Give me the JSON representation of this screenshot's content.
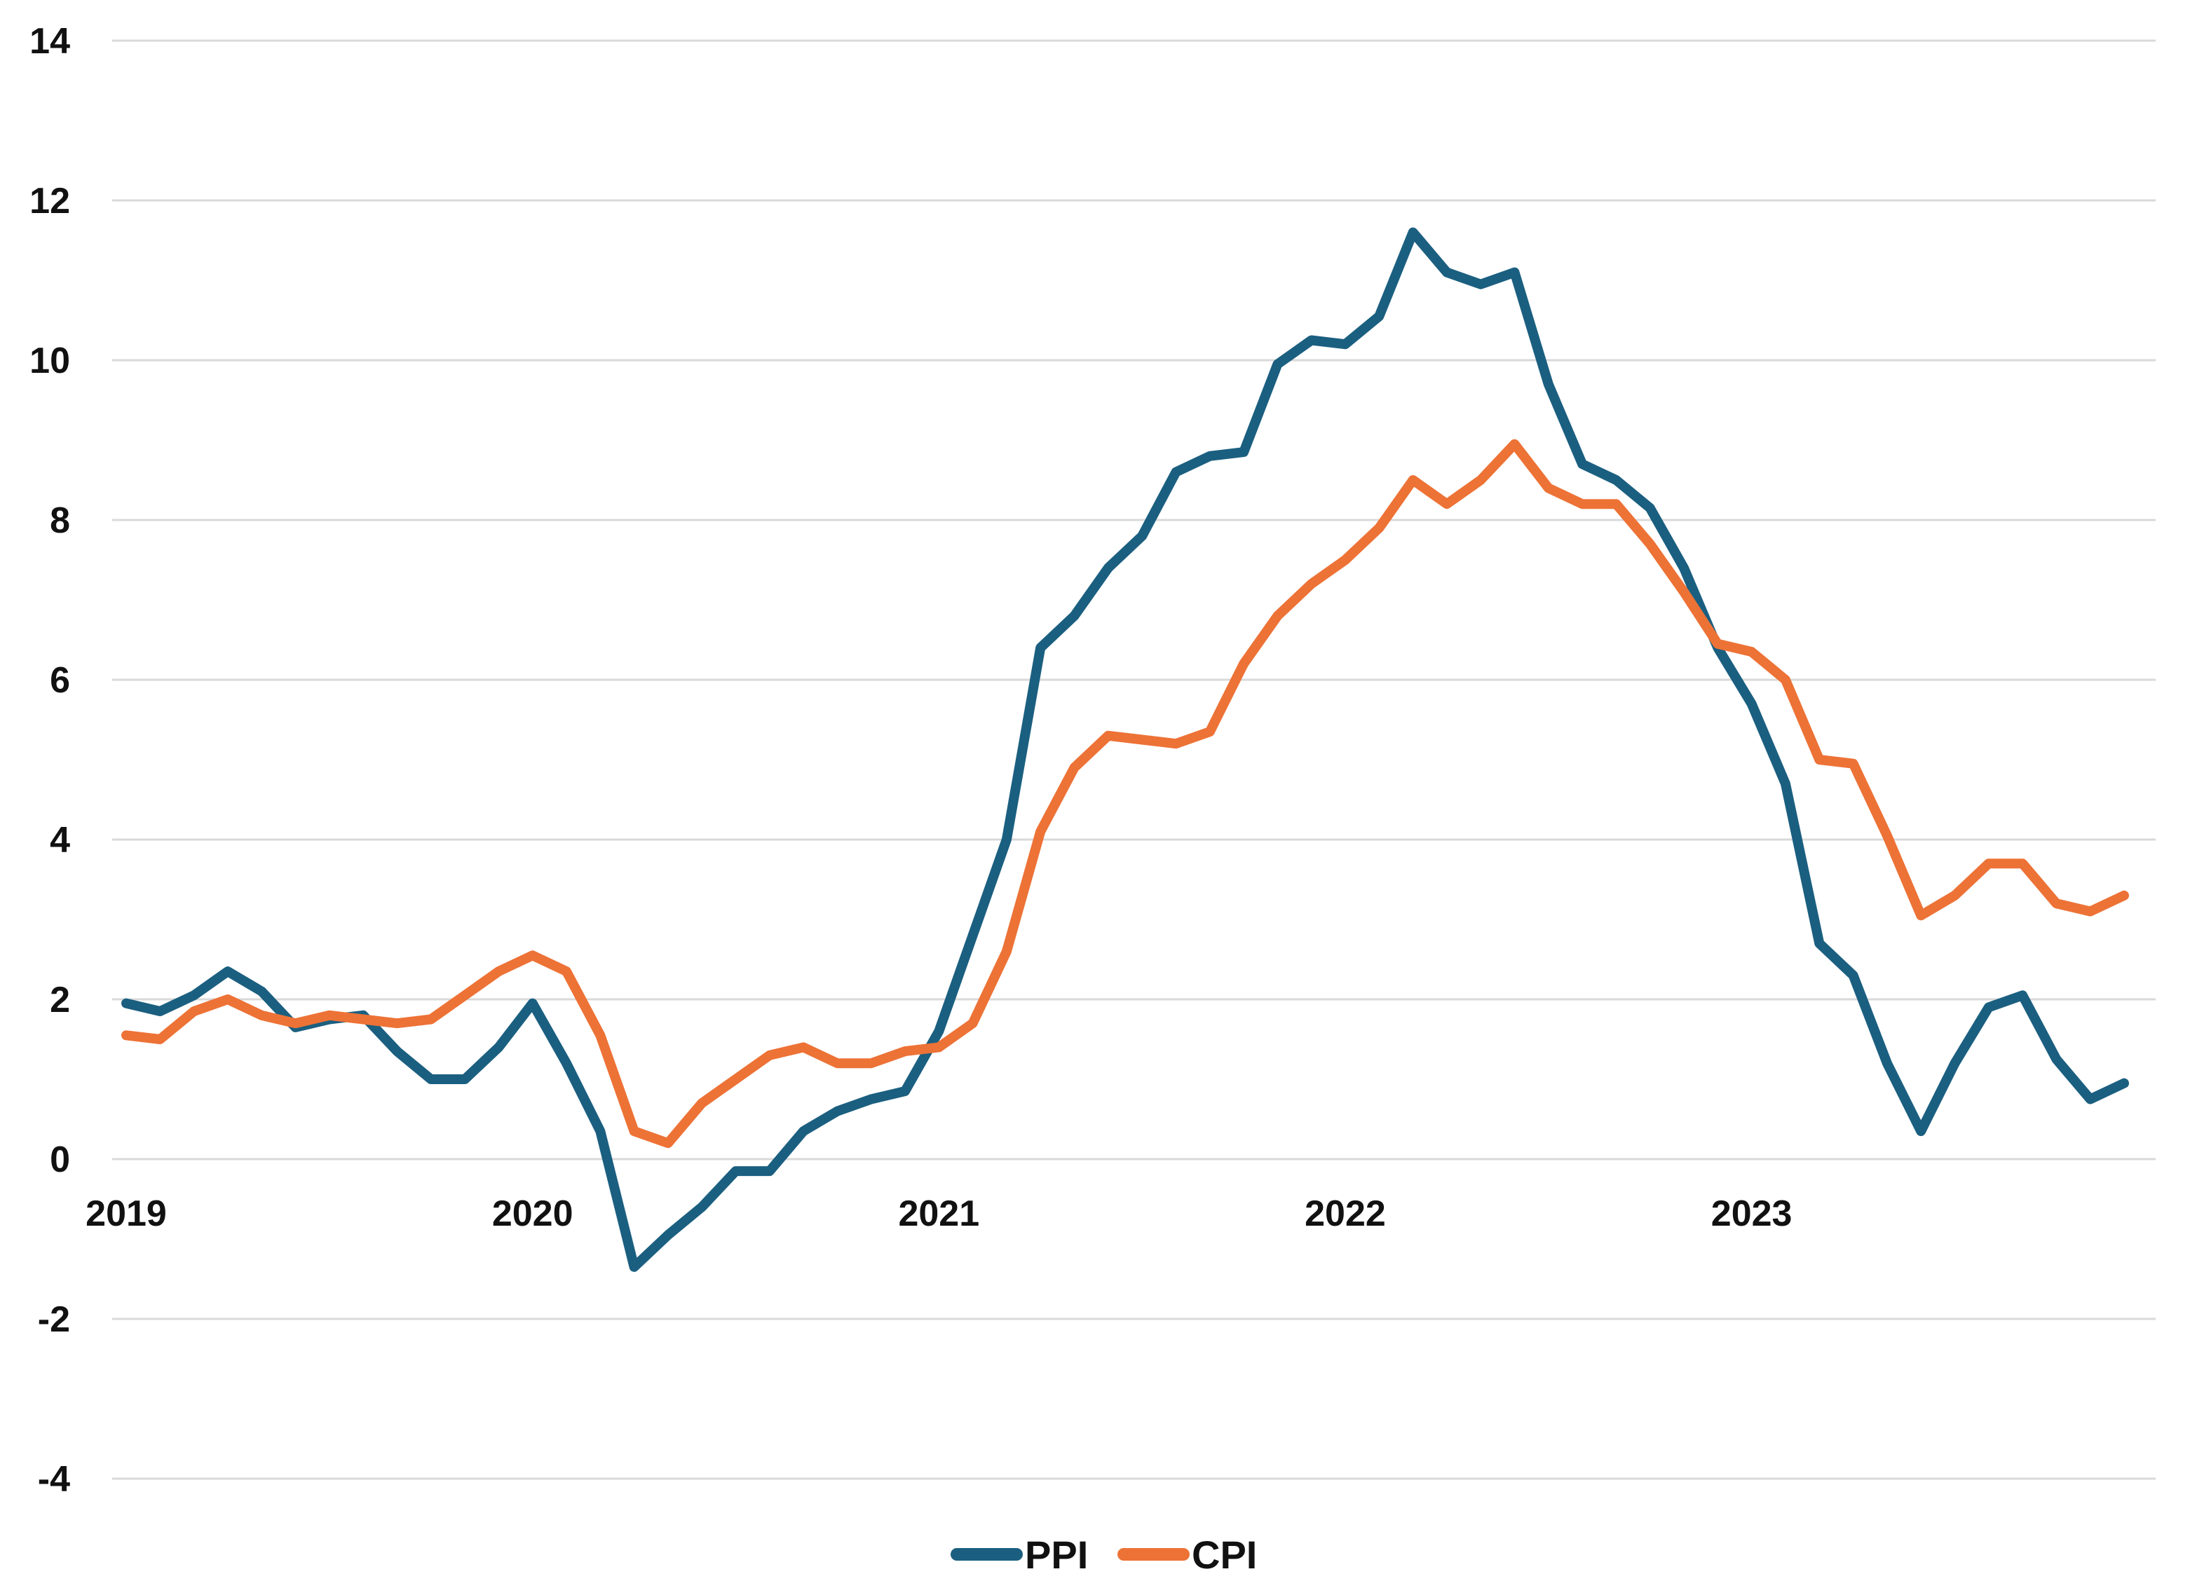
{
  "chart_data": {
    "type": "line",
    "title": "",
    "xlabel": "",
    "ylabel": "",
    "ylim": [
      -4,
      14
    ],
    "yticks": [
      -4,
      -2,
      0,
      2,
      4,
      6,
      8,
      10,
      12,
      14
    ],
    "xlim": [
      "2019-01",
      "2023-12"
    ],
    "xticks": [
      {
        "label": "2019",
        "x": "2019-01"
      },
      {
        "label": "2020",
        "x": "2020-01"
      },
      {
        "label": "2021",
        "x": "2021-01"
      },
      {
        "label": "2022",
        "x": "2022-01"
      },
      {
        "label": "2023",
        "x": "2023-01"
      }
    ],
    "grid": true,
    "legend": "bottom-center",
    "series": [
      {
        "name": "PPI",
        "color": "#1b5f80",
        "values": [
          {
            "x": "2019-01",
            "y": 1.95
          },
          {
            "x": "2019-02",
            "y": 1.85
          },
          {
            "x": "2019-03",
            "y": 2.05
          },
          {
            "x": "2019-04",
            "y": 2.35
          },
          {
            "x": "2019-05",
            "y": 2.1
          },
          {
            "x": "2019-06",
            "y": 1.65
          },
          {
            "x": "2019-07",
            "y": 1.75
          },
          {
            "x": "2019-08",
            "y": 1.8
          },
          {
            "x": "2019-09",
            "y": 1.35
          },
          {
            "x": "2019-10",
            "y": 1.0
          },
          {
            "x": "2019-11",
            "y": 1.0
          },
          {
            "x": "2019-12",
            "y": 1.4
          },
          {
            "x": "2020-01",
            "y": 1.95
          },
          {
            "x": "2020-02",
            "y": 1.2
          },
          {
            "x": "2020-03",
            "y": 0.35
          },
          {
            "x": "2020-04",
            "y": -1.35
          },
          {
            "x": "2020-05",
            "y": -0.95
          },
          {
            "x": "2020-06",
            "y": -0.6
          },
          {
            "x": "2020-07",
            "y": -0.15
          },
          {
            "x": "2020-08",
            "y": -0.15
          },
          {
            "x": "2020-09",
            "y": 0.35
          },
          {
            "x": "2020-10",
            "y": 0.6
          },
          {
            "x": "2020-11",
            "y": 0.75
          },
          {
            "x": "2020-12",
            "y": 0.85
          },
          {
            "x": "2021-01",
            "y": 1.6
          },
          {
            "x": "2021-02",
            "y": 2.8
          },
          {
            "x": "2021-03",
            "y": 4.0
          },
          {
            "x": "2021-04",
            "y": 6.4
          },
          {
            "x": "2021-05",
            "y": 6.8
          },
          {
            "x": "2021-06",
            "y": 7.4
          },
          {
            "x": "2021-07",
            "y": 7.8
          },
          {
            "x": "2021-08",
            "y": 8.6
          },
          {
            "x": "2021-09",
            "y": 8.8
          },
          {
            "x": "2021-10",
            "y": 8.85
          },
          {
            "x": "2021-11",
            "y": 9.95
          },
          {
            "x": "2021-12",
            "y": 10.25
          },
          {
            "x": "2022-01",
            "y": 10.2
          },
          {
            "x": "2022-02",
            "y": 10.55
          },
          {
            "x": "2022-03",
            "y": 11.6
          },
          {
            "x": "2022-04",
            "y": 11.1
          },
          {
            "x": "2022-05",
            "y": 10.95
          },
          {
            "x": "2022-06",
            "y": 11.1
          },
          {
            "x": "2022-07",
            "y": 9.7
          },
          {
            "x": "2022-08",
            "y": 8.7
          },
          {
            "x": "2022-09",
            "y": 8.5
          },
          {
            "x": "2022-10",
            "y": 8.15
          },
          {
            "x": "2022-11",
            "y": 7.4
          },
          {
            "x": "2022-12",
            "y": 6.4
          },
          {
            "x": "2023-01",
            "y": 5.7
          },
          {
            "x": "2023-02",
            "y": 4.7
          },
          {
            "x": "2023-03",
            "y": 2.7
          },
          {
            "x": "2023-04",
            "y": 2.3
          },
          {
            "x": "2023-05",
            "y": 1.2
          },
          {
            "x": "2023-06",
            "y": 0.35
          },
          {
            "x": "2023-07",
            "y": 1.2
          },
          {
            "x": "2023-08",
            "y": 1.9
          },
          {
            "x": "2023-09",
            "y": 2.05
          },
          {
            "x": "2023-10",
            "y": 1.25
          },
          {
            "x": "2023-11",
            "y": 0.75
          },
          {
            "x": "2023-12",
            "y": 0.95
          }
        ]
      },
      {
        "name": "CPI",
        "color": "#ed7236",
        "values": [
          {
            "x": "2019-01",
            "y": 1.55
          },
          {
            "x": "2019-02",
            "y": 1.5
          },
          {
            "x": "2019-03",
            "y": 1.85
          },
          {
            "x": "2019-04",
            "y": 2.0
          },
          {
            "x": "2019-05",
            "y": 1.8
          },
          {
            "x": "2019-06",
            "y": 1.7
          },
          {
            "x": "2019-07",
            "y": 1.8
          },
          {
            "x": "2019-08",
            "y": 1.75
          },
          {
            "x": "2019-09",
            "y": 1.7
          },
          {
            "x": "2019-10",
            "y": 1.75
          },
          {
            "x": "2019-11",
            "y": 2.05
          },
          {
            "x": "2019-12",
            "y": 2.35
          },
          {
            "x": "2020-01",
            "y": 2.55
          },
          {
            "x": "2020-02",
            "y": 2.35
          },
          {
            "x": "2020-03",
            "y": 1.55
          },
          {
            "x": "2020-04",
            "y": 0.35
          },
          {
            "x": "2020-05",
            "y": 0.2
          },
          {
            "x": "2020-06",
            "y": 0.7
          },
          {
            "x": "2020-07",
            "y": 1.0
          },
          {
            "x": "2020-08",
            "y": 1.3
          },
          {
            "x": "2020-09",
            "y": 1.4
          },
          {
            "x": "2020-10",
            "y": 1.2
          },
          {
            "x": "2020-11",
            "y": 1.2
          },
          {
            "x": "2020-12",
            "y": 1.35
          },
          {
            "x": "2021-01",
            "y": 1.4
          },
          {
            "x": "2021-02",
            "y": 1.7
          },
          {
            "x": "2021-03",
            "y": 2.6
          },
          {
            "x": "2021-04",
            "y": 4.1
          },
          {
            "x": "2021-05",
            "y": 4.9
          },
          {
            "x": "2021-06",
            "y": 5.3
          },
          {
            "x": "2021-07",
            "y": 5.25
          },
          {
            "x": "2021-08",
            "y": 5.2
          },
          {
            "x": "2021-09",
            "y": 5.35
          },
          {
            "x": "2021-10",
            "y": 6.2
          },
          {
            "x": "2021-11",
            "y": 6.8
          },
          {
            "x": "2021-12",
            "y": 7.2
          },
          {
            "x": "2022-01",
            "y": 7.5
          },
          {
            "x": "2022-02",
            "y": 7.9
          },
          {
            "x": "2022-03",
            "y": 8.5
          },
          {
            "x": "2022-04",
            "y": 8.2
          },
          {
            "x": "2022-05",
            "y": 8.5
          },
          {
            "x": "2022-06",
            "y": 8.95
          },
          {
            "x": "2022-07",
            "y": 8.4
          },
          {
            "x": "2022-08",
            "y": 8.2
          },
          {
            "x": "2022-09",
            "y": 8.2
          },
          {
            "x": "2022-10",
            "y": 7.7
          },
          {
            "x": "2022-11",
            "y": 7.1
          },
          {
            "x": "2022-12",
            "y": 6.45
          },
          {
            "x": "2023-01",
            "y": 6.35
          },
          {
            "x": "2023-02",
            "y": 6.0
          },
          {
            "x": "2023-03",
            "y": 5.0
          },
          {
            "x": "2023-04",
            "y": 4.95
          },
          {
            "x": "2023-05",
            "y": 4.05
          },
          {
            "x": "2023-06",
            "y": 3.05
          },
          {
            "x": "2023-07",
            "y": 3.3
          },
          {
            "x": "2023-08",
            "y": 3.7
          },
          {
            "x": "2023-09",
            "y": 3.7
          },
          {
            "x": "2023-10",
            "y": 3.2
          },
          {
            "x": "2023-11",
            "y": 3.1
          },
          {
            "x": "2023-12",
            "y": 3.3
          }
        ]
      }
    ]
  }
}
